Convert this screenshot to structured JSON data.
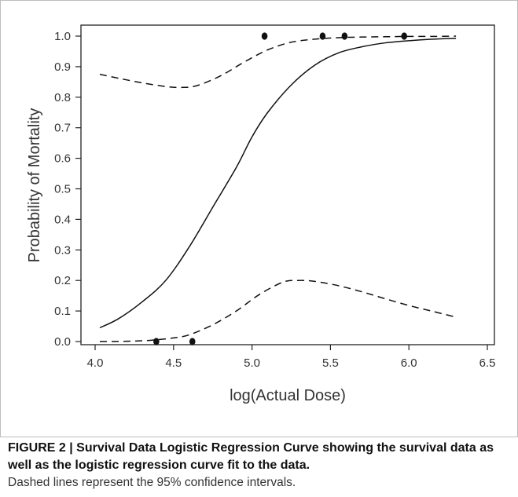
{
  "chart_data": {
    "type": "scatter",
    "xlabel": "log(Actual Dose)",
    "ylabel": "Probability of Mortality",
    "xlim": [
      4.0,
      6.5
    ],
    "ylim": [
      0.0,
      1.0
    ],
    "xticks": [
      4.0,
      4.5,
      5.0,
      5.5,
      6.0,
      6.5
    ],
    "yticks": [
      0.0,
      0.1,
      0.2,
      0.3,
      0.4,
      0.5,
      0.6,
      0.7,
      0.8,
      0.9,
      1.0
    ],
    "xtick_labels": [
      "4.0",
      "4.5",
      "5.0",
      "5.5",
      "6.0",
      "6.5"
    ],
    "ytick_labels": [
      "0.0",
      "0.1",
      "0.2",
      "0.3",
      "0.4",
      "0.5",
      "0.6",
      "0.7",
      "0.8",
      "0.9",
      "1.0"
    ],
    "grid": false,
    "points": [
      {
        "x": 4.39,
        "y": 0.0
      },
      {
        "x": 4.62,
        "y": 0.0
      },
      {
        "x": 5.08,
        "y": 1.0
      },
      {
        "x": 5.45,
        "y": 1.0
      },
      {
        "x": 5.59,
        "y": 1.0
      },
      {
        "x": 5.97,
        "y": 1.0
      }
    ],
    "series": [
      {
        "style": "solid",
        "x": [
          4.03,
          4.15,
          4.3,
          4.45,
          4.6,
          4.75,
          4.9,
          5.0,
          5.1,
          5.25,
          5.4,
          5.55,
          5.7,
          5.85,
          6.0,
          6.15,
          6.3
        ],
        "y": [
          0.045,
          0.075,
          0.13,
          0.2,
          0.31,
          0.44,
          0.57,
          0.67,
          0.75,
          0.84,
          0.905,
          0.945,
          0.965,
          0.978,
          0.985,
          0.99,
          0.993
        ]
      },
      {
        "style": "dashed",
        "x": [
          4.03,
          4.15,
          4.3,
          4.45,
          4.55,
          4.65,
          4.8,
          4.95,
          5.1,
          5.25,
          5.4,
          5.55,
          5.7,
          5.85,
          6.0,
          6.15,
          6.3
        ],
        "y": [
          0.875,
          0.862,
          0.847,
          0.835,
          0.832,
          0.838,
          0.87,
          0.915,
          0.955,
          0.98,
          0.99,
          0.995,
          0.997,
          0.998,
          0.999,
          0.999,
          1.0
        ]
      },
      {
        "style": "dashed",
        "x": [
          4.03,
          4.2,
          4.35,
          4.5,
          4.6,
          4.75,
          4.9,
          5.05,
          5.2,
          5.3,
          5.4,
          5.55,
          5.7,
          5.85,
          6.0,
          6.15,
          6.3
        ],
        "y": [
          0.0,
          0.001,
          0.004,
          0.012,
          0.022,
          0.055,
          0.1,
          0.155,
          0.195,
          0.2,
          0.197,
          0.183,
          0.163,
          0.14,
          0.118,
          0.099,
          0.08
        ]
      }
    ]
  },
  "caption": {
    "title": "FIGURE 2 | Survival Data Logistic Regression Curve showing the survival data as well as the logistic regression curve fit to the data.",
    "body": "Dashed lines represent the 95% confidence intervals."
  },
  "colors": {
    "line": "#111111",
    "frame_border": "#bdbdbd"
  }
}
